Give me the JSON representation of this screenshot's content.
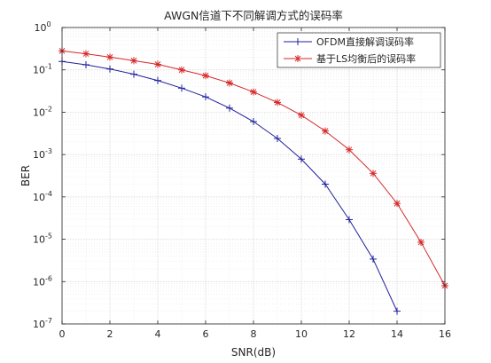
{
  "chart_data": {
    "type": "line",
    "title": "AWGN信道下不同解调方式的误码率",
    "xlabel": "SNR(dB)",
    "ylabel": "BER",
    "xlim": [
      0,
      16
    ],
    "ylim": [
      1e-07,
      1
    ],
    "yscale": "log",
    "grid": true,
    "legend_position": "top-right",
    "x_ticks": [
      0,
      2,
      4,
      6,
      8,
      10,
      12,
      14,
      16
    ],
    "y_ticks": [
      {
        "value": 1,
        "base": "10",
        "exp": "0"
      },
      {
        "value": 0.1,
        "base": "10",
        "exp": "-1"
      },
      {
        "value": 0.01,
        "base": "10",
        "exp": "-2"
      },
      {
        "value": 0.001,
        "base": "10",
        "exp": "-3"
      },
      {
        "value": 0.0001,
        "base": "10",
        "exp": "-4"
      },
      {
        "value": 1e-05,
        "base": "10",
        "exp": "-5"
      },
      {
        "value": 1e-06,
        "base": "10",
        "exp": "-6"
      },
      {
        "value": 1e-07,
        "base": "10",
        "exp": "-7"
      }
    ],
    "series": [
      {
        "name": "OFDM直接解调误码率",
        "color": "#1f1f9e",
        "marker": "plus",
        "x": [
          0,
          1,
          2,
          3,
          4,
          5,
          6,
          7,
          8,
          9,
          10,
          11,
          12,
          13,
          14
        ],
        "y": [
          0.158,
          0.132,
          0.105,
          0.079,
          0.056,
          0.037,
          0.023,
          0.0125,
          0.006,
          0.0024,
          0.00078,
          0.0002,
          2.9e-05,
          3.4e-06,
          2e-07
        ]
      },
      {
        "name": "基于LS均衡后的误码率",
        "color": "#d62728",
        "marker": "star",
        "x": [
          0,
          1,
          2,
          3,
          4,
          5,
          6,
          7,
          8,
          9,
          10,
          11,
          12,
          13,
          14,
          15,
          16
        ],
        "y": [
          0.28,
          0.24,
          0.2,
          0.165,
          0.135,
          0.1,
          0.073,
          0.049,
          0.03,
          0.017,
          0.0085,
          0.0036,
          0.0013,
          0.00036,
          7e-05,
          8.5e-06,
          8e-07
        ]
      }
    ]
  }
}
